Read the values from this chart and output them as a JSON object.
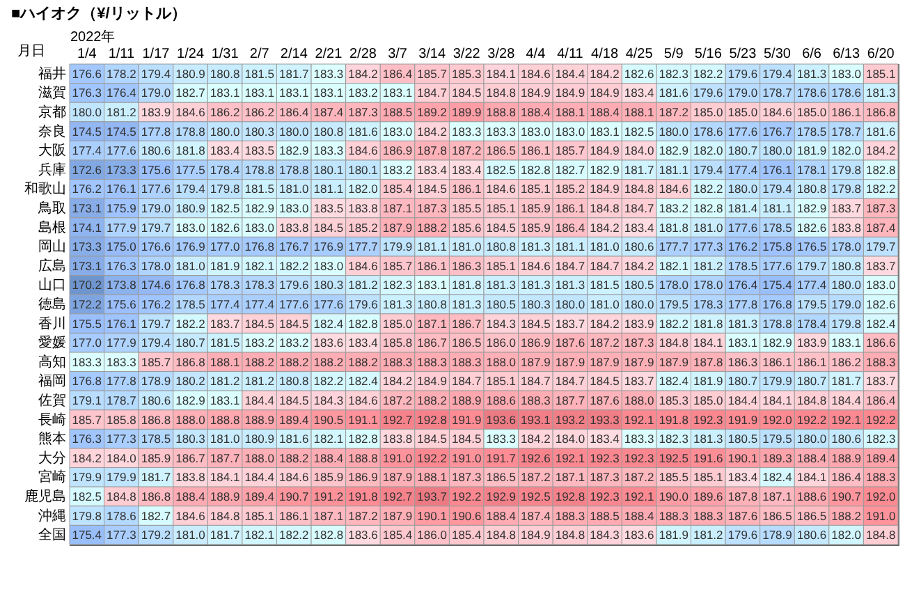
{
  "chart_data": {
    "type": "heatmap",
    "title": "■ハイオク（¥/リットル）",
    "xlabel": "2022年",
    "ylabel": "月日",
    "data_labels": true,
    "cell_labels": [
      [
        "176.6",
        "178.2",
        "179.4",
        "180.9",
        "180.8",
        "181.5",
        "181.7",
        "183.3",
        "184.2",
        "186.4",
        "185.7",
        "185.3",
        "184.1",
        "184.6",
        "184.4",
        "184.2",
        "182.6",
        "182.3",
        "182.2",
        "179.6",
        "179.4",
        "181.3",
        "183.0",
        "185.1"
      ],
      [
        "176.3",
        "176.4",
        "179.0",
        "182.7",
        "183.1",
        "183.1",
        "183.1",
        "183.1",
        "183.2",
        "183.1",
        "184.7",
        "184.5",
        "184.8",
        "184.9",
        "184.9",
        "184.9",
        "183.4",
        "181.6",
        "179.6",
        "179.0",
        "178.7",
        "178.6",
        "178.6",
        "181.3"
      ],
      [
        "180.0",
        "181.2",
        "183.9",
        "184.6",
        "186.2",
        "186.2",
        "186.4",
        "187.4",
        "187.3",
        "188.5",
        "189.2",
        "189.9",
        "188.8",
        "188.4",
        "188.1",
        "188.4",
        "188.1",
        "187.2",
        "185.0",
        "185.0",
        "184.6",
        "185.0",
        "186.1",
        "186.8"
      ],
      [
        "174.5",
        "174.5",
        "177.8",
        "178.8",
        "180.0",
        "180.3",
        "180.0",
        "180.8",
        "181.6",
        "183.0",
        "184.2",
        "183.3",
        "183.3",
        "183.0",
        "183.0",
        "183.1",
        "182.5",
        "180.0",
        "178.6",
        "177.6",
        "176.7",
        "178.5",
        "178.7",
        "181.6"
      ],
      [
        "177.4",
        "177.6",
        "180.6",
        "181.8",
        "183.4",
        "183.5",
        "182.9",
        "183.3",
        "184.6",
        "186.9",
        "187.8",
        "187.2",
        "186.5",
        "186.1",
        "185.7",
        "184.9",
        "184.0",
        "182.9",
        "182.0",
        "180.7",
        "180.0",
        "181.9",
        "182.0",
        "184.2"
      ],
      [
        "172.6",
        "173.3",
        "175.6",
        "177.5",
        "178.4",
        "178.8",
        "178.8",
        "180.1",
        "180.1",
        "183.2",
        "183.4",
        "183.4",
        "182.5",
        "182.8",
        "182.7",
        "182.9",
        "181.7",
        "181.1",
        "179.4",
        "177.4",
        "176.1",
        "178.1",
        "179.8",
        "182.8"
      ],
      [
        "176.2",
        "176.1",
        "177.6",
        "179.4",
        "179.8",
        "181.5",
        "181.0",
        "181.1",
        "182.0",
        "185.4",
        "184.5",
        "186.1",
        "184.6",
        "185.1",
        "185.2",
        "184.9",
        "184.8",
        "184.6",
        "182.2",
        "180.0",
        "179.4",
        "180.8",
        "179.8",
        "182.2"
      ],
      [
        "173.1",
        "175.9",
        "179.0",
        "180.9",
        "182.5",
        "182.9",
        "183.0",
        "183.5",
        "183.8",
        "187.1",
        "187.3",
        "185.5",
        "185.1",
        "185.9",
        "186.1",
        "184.8",
        "184.7",
        "183.2",
        "182.8",
        "181.4",
        "181.1",
        "182.9",
        "183.7",
        "187.3"
      ],
      [
        "174.1",
        "177.9",
        "179.7",
        "183.0",
        "182.6",
        "183.0",
        "183.8",
        "184.5",
        "185.2",
        "187.9",
        "188.2",
        "185.6",
        "184.5",
        "185.9",
        "186.4",
        "184.2",
        "183.4",
        "181.8",
        "181.0",
        "177.6",
        "178.5",
        "182.6",
        "183.8",
        "187.4"
      ],
      [
        "173.3",
        "175.0",
        "176.6",
        "176.9",
        "177.0",
        "176.8",
        "176.7",
        "176.9",
        "177.7",
        "179.9",
        "181.1",
        "181.0",
        "180.8",
        "181.3",
        "181.1",
        "181.0",
        "180.6",
        "177.7",
        "177.3",
        "176.2",
        "175.8",
        "176.5",
        "178.0",
        "179.7"
      ],
      [
        "173.1",
        "176.3",
        "178.0",
        "181.0",
        "181.9",
        "182.1",
        "182.2",
        "183.0",
        "184.6",
        "185.7",
        "186.1",
        "186.3",
        "185.1",
        "184.6",
        "184.7",
        "184.7",
        "184.2",
        "182.1",
        "181.2",
        "178.5",
        "177.6",
        "179.7",
        "180.8",
        "183.7"
      ],
      [
        "170.2",
        "173.8",
        "174.6",
        "176.8",
        "178.3",
        "178.3",
        "179.6",
        "180.3",
        "181.2",
        "182.3",
        "183.1",
        "181.8",
        "181.3",
        "181.3",
        "181.3",
        "181.5",
        "180.5",
        "178.0",
        "178.0",
        "176.4",
        "175.4",
        "177.4",
        "180.0",
        "183.0"
      ],
      [
        "172.2",
        "175.6",
        "176.2",
        "178.5",
        "177.4",
        "177.4",
        "177.6",
        "177.6",
        "179.6",
        "181.3",
        "180.8",
        "181.3",
        "180.5",
        "180.3",
        "180.0",
        "181.0",
        "180.0",
        "179.5",
        "178.3",
        "177.8",
        "176.8",
        "179.5",
        "179.0",
        "182.6"
      ],
      [
        "175.5",
        "176.1",
        "179.7",
        "182.2",
        "183.7",
        "184.5",
        "184.5",
        "182.4",
        "182.8",
        "185.0",
        "187.1",
        "186.7",
        "184.3",
        "184.5",
        "183.7",
        "184.2",
        "183.9",
        "182.2",
        "181.8",
        "181.3",
        "178.8",
        "178.4",
        "179.8",
        "182.4"
      ],
      [
        "177.0",
        "177.9",
        "179.4",
        "180.7",
        "181.5",
        "183.2",
        "183.2",
        "183.6",
        "183.4",
        "185.8",
        "186.7",
        "186.5",
        "186.0",
        "186.9",
        "187.6",
        "187.2",
        "187.3",
        "184.8",
        "184.1",
        "183.1",
        "182.9",
        "183.9",
        "183.1",
        "186.6"
      ],
      [
        "183.3",
        "183.3",
        "185.7",
        "186.8",
        "188.1",
        "188.2",
        "188.2",
        "188.2",
        "188.2",
        "188.3",
        "188.3",
        "188.3",
        "188.0",
        "187.9",
        "187.9",
        "187.9",
        "187.9",
        "187.9",
        "187.8",
        "186.3",
        "186.1",
        "186.1",
        "186.2",
        "188.3"
      ],
      [
        "176.8",
        "177.8",
        "178.9",
        "180.2",
        "181.2",
        "181.2",
        "180.8",
        "182.2",
        "182.4",
        "184.2",
        "184.9",
        "184.7",
        "185.1",
        "184.7",
        "184.7",
        "184.5",
        "183.7",
        "182.4",
        "181.9",
        "180.7",
        "179.9",
        "180.7",
        "181.7",
        "183.7"
      ],
      [
        "179.1",
        "178.7",
        "180.6",
        "182.9",
        "183.1",
        "184.4",
        "184.5",
        "184.3",
        "184.6",
        "187.2",
        "188.2",
        "188.9",
        "188.6",
        "188.3",
        "187.7",
        "187.6",
        "188.0",
        "185.3",
        "185.0",
        "184.4",
        "184.1",
        "184.8",
        "184.4",
        "186.4"
      ],
      [
        "185.7",
        "185.8",
        "186.8",
        "188.0",
        "188.8",
        "188.9",
        "189.4",
        "190.5",
        "191.1",
        "192.7",
        "192.8",
        "191.9",
        "193.6",
        "193.1",
        "193.2",
        "193.3",
        "192.1",
        "191.8",
        "192.3",
        "191.9",
        "192.0",
        "192.2",
        "192.1",
        "192.2"
      ],
      [
        "176.3",
        "177.3",
        "178.5",
        "180.3",
        "181.0",
        "180.9",
        "181.6",
        "182.1",
        "182.8",
        "183.8",
        "184.5",
        "184.5",
        "183.3",
        "184.2",
        "184.0",
        "183.4",
        "183.3",
        "182.3",
        "181.3",
        "180.5",
        "179.5",
        "180.0",
        "180.6",
        "182.3"
      ],
      [
        "184.2",
        "184.0",
        "185.9",
        "186.7",
        "187.7",
        "188.0",
        "188.2",
        "188.4",
        "188.8",
        "191.0",
        "192.2",
        "191.0",
        "191.7",
        "192.6",
        "192.1",
        "192.3",
        "192.3",
        "192.5",
        "191.6",
        "190.1",
        "189.3",
        "188.4",
        "188.9",
        "189.4"
      ],
      [
        "179.9",
        "179.9",
        "181.7",
        "183.8",
        "184.1",
        "184.4",
        "184.6",
        "185.9",
        "186.9",
        "187.9",
        "188.1",
        "187.3",
        "186.5",
        "187.2",
        "187.1",
        "187.3",
        "187.2",
        "185.5",
        "185.1",
        "183.4",
        "182.4",
        "184.1",
        "186.4",
        "188.3"
      ],
      [
        "182.5",
        "184.8",
        "186.8",
        "188.4",
        "188.9",
        "189.4",
        "190.7",
        "191.2",
        "191.8",
        "192.7",
        "193.7",
        "192.2",
        "192.9",
        "192.5",
        "192.8",
        "192.3",
        "192.1",
        "190.0",
        "189.6",
        "187.8",
        "187.1",
        "188.6",
        "190.7",
        "192.0"
      ],
      [
        "179.8",
        "178.6",
        "182.7",
        "184.6",
        "184.8",
        "185.1",
        "186.1",
        "187.1",
        "187.2",
        "187.9",
        "190.1",
        "190.6",
        "188.4",
        "187.4",
        "188.3",
        "188.5",
        "188.4",
        "188.3",
        "188.3",
        "187.6",
        "186.5",
        "186.5",
        "188.2",
        "191.0"
      ],
      [
        "175.4",
        "177.3",
        "179.2",
        "181.0",
        "181.7",
        "182.1",
        "182.2",
        "182.8",
        "183.6",
        "185.4",
        "186.0",
        "185.4",
        "184.8",
        "184.9",
        "184.8",
        "184.3",
        "183.6",
        "181.9",
        "181.2",
        "179.6",
        "178.9",
        "180.6",
        "182.0",
        "184.8"
      ]
    ],
    "categories": [
      "1/4",
      "1/11",
      "1/17",
      "1/24",
      "1/31",
      "2/7",
      "2/14",
      "2/21",
      "2/28",
      "3/7",
      "3/14",
      "3/22",
      "3/28",
      "4/4",
      "4/11",
      "4/18",
      "4/25",
      "5/9",
      "5/16",
      "5/23",
      "5/30",
      "6/6",
      "6/13",
      "6/20"
    ],
    "y_categories": [
      "福井",
      "滋賀",
      "京都",
      "奈良",
      "大阪",
      "兵庫",
      "和歌山",
      "鳥取",
      "島根",
      "岡山",
      "広島",
      "山口",
      "徳島",
      "香川",
      "愛媛",
      "高知",
      "福岡",
      "佐賀",
      "長崎",
      "熊本",
      "大分",
      "宮崎",
      "鹿児島",
      "沖縄",
      "全国"
    ],
    "cells": [
      [
        176.6,
        178.2,
        179.4,
        180.9,
        180.8,
        181.5,
        181.7,
        183.3,
        184.2,
        186.4,
        185.7,
        185.3,
        184.1,
        184.6,
        184.4,
        184.2,
        182.6,
        182.3,
        182.2,
        179.6,
        179.4,
        181.3,
        183.0,
        185.1
      ],
      [
        176.3,
        176.4,
        179.0,
        182.7,
        183.1,
        183.1,
        183.1,
        183.1,
        183.2,
        183.1,
        184.7,
        184.5,
        184.8,
        184.9,
        184.9,
        184.9,
        183.4,
        181.6,
        179.6,
        179.0,
        178.7,
        178.6,
        178.6,
        181.3
      ],
      [
        180.0,
        181.2,
        183.9,
        184.6,
        186.2,
        186.2,
        186.4,
        187.4,
        187.3,
        188.5,
        189.2,
        189.9,
        188.8,
        188.4,
        188.1,
        188.4,
        188.1,
        187.2,
        185.0,
        185.0,
        184.6,
        185.0,
        186.1,
        186.8
      ],
      [
        174.5,
        174.5,
        177.8,
        178.8,
        180.0,
        180.3,
        180.0,
        180.8,
        181.6,
        183.0,
        184.2,
        183.3,
        183.3,
        183.0,
        183.0,
        183.1,
        182.5,
        180.0,
        178.6,
        177.6,
        176.7,
        178.5,
        178.7,
        181.6
      ],
      [
        177.4,
        177.6,
        180.6,
        181.8,
        183.4,
        183.5,
        182.9,
        183.3,
        184.6,
        186.9,
        187.8,
        187.2,
        186.5,
        186.1,
        185.7,
        184.9,
        184.0,
        182.9,
        182.0,
        180.7,
        180.0,
        181.9,
        182.0,
        184.2
      ],
      [
        172.6,
        173.3,
        175.6,
        177.5,
        178.4,
        178.8,
        178.8,
        180.1,
        180.1,
        183.2,
        183.4,
        183.4,
        182.5,
        182.8,
        182.7,
        182.9,
        181.7,
        181.1,
        179.4,
        177.4,
        176.1,
        178.1,
        179.8,
        182.8
      ],
      [
        176.2,
        176.1,
        177.6,
        179.4,
        179.8,
        181.5,
        181.0,
        181.1,
        182.0,
        185.4,
        184.5,
        186.1,
        184.6,
        185.1,
        185.2,
        184.9,
        184.8,
        184.6,
        182.2,
        180.0,
        179.4,
        180.8,
        179.8,
        182.2
      ],
      [
        173.1,
        175.9,
        179.0,
        180.9,
        182.5,
        182.9,
        183.0,
        183.5,
        183.8,
        187.1,
        187.3,
        185.5,
        185.1,
        185.9,
        186.1,
        184.8,
        184.7,
        183.2,
        182.8,
        181.4,
        181.1,
        182.9,
        183.7,
        187.3
      ],
      [
        174.1,
        177.9,
        179.7,
        183.0,
        182.6,
        183.0,
        183.8,
        184.5,
        185.2,
        187.9,
        188.2,
        185.6,
        184.5,
        185.9,
        186.4,
        184.2,
        183.4,
        181.8,
        181.0,
        177.6,
        178.5,
        182.6,
        183.8,
        187.4
      ],
      [
        173.3,
        175.0,
        176.6,
        176.9,
        177.0,
        176.8,
        176.7,
        176.9,
        177.7,
        179.9,
        181.1,
        181.0,
        180.8,
        181.3,
        181.1,
        181.0,
        180.6,
        177.7,
        177.3,
        176.2,
        175.8,
        176.5,
        178.0,
        179.7
      ],
      [
        173.1,
        176.3,
        178.0,
        181.0,
        181.9,
        182.1,
        182.2,
        183.0,
        184.6,
        185.7,
        186.1,
        186.3,
        185.1,
        184.6,
        184.7,
        184.7,
        184.2,
        182.1,
        181.2,
        178.5,
        177.6,
        179.7,
        180.8,
        183.7
      ],
      [
        170.2,
        173.8,
        174.6,
        176.8,
        178.3,
        178.3,
        179.6,
        180.3,
        181.2,
        182.3,
        183.1,
        181.8,
        181.3,
        181.3,
        181.3,
        181.5,
        180.5,
        178.0,
        178.0,
        176.4,
        175.4,
        177.4,
        180.0,
        183.0
      ],
      [
        172.2,
        175.6,
        176.2,
        178.5,
        177.4,
        177.4,
        177.6,
        177.6,
        179.6,
        181.3,
        180.8,
        181.3,
        180.5,
        180.3,
        180.0,
        181.0,
        180.0,
        179.5,
        178.3,
        177.8,
        176.8,
        179.5,
        179.0,
        182.6
      ],
      [
        175.5,
        176.1,
        179.7,
        182.2,
        183.7,
        184.5,
        184.5,
        182.4,
        182.8,
        185.0,
        187.1,
        186.7,
        184.3,
        184.5,
        183.7,
        184.2,
        183.9,
        182.2,
        181.8,
        181.3,
        178.8,
        178.4,
        179.8,
        182.4
      ],
      [
        177.0,
        177.9,
        179.4,
        180.7,
        181.5,
        183.2,
        183.2,
        183.6,
        183.4,
        185.8,
        186.7,
        186.5,
        186.0,
        186.9,
        187.6,
        187.2,
        187.3,
        184.8,
        184.1,
        183.1,
        182.9,
        183.9,
        183.1,
        186.6
      ],
      [
        183.3,
        183.3,
        185.7,
        186.8,
        188.1,
        188.2,
        188.2,
        188.2,
        188.2,
        188.3,
        188.3,
        188.3,
        188.0,
        187.9,
        187.9,
        187.9,
        187.9,
        187.9,
        187.8,
        186.3,
        186.1,
        186.1,
        186.2,
        188.3
      ],
      [
        176.8,
        177.8,
        178.9,
        180.2,
        181.2,
        181.2,
        180.8,
        182.2,
        182.4,
        184.2,
        184.9,
        184.7,
        185.1,
        184.7,
        184.7,
        184.5,
        183.7,
        182.4,
        181.9,
        180.7,
        179.9,
        180.7,
        181.7,
        183.7
      ],
      [
        179.1,
        178.7,
        180.6,
        182.9,
        183.1,
        184.4,
        184.5,
        184.3,
        184.6,
        187.2,
        188.2,
        188.9,
        188.6,
        188.3,
        187.7,
        187.6,
        188.0,
        185.3,
        185.0,
        184.4,
        184.1,
        184.8,
        184.4,
        186.4
      ],
      [
        185.7,
        185.8,
        186.8,
        188.0,
        188.8,
        188.9,
        189.4,
        190.5,
        191.1,
        192.7,
        192.8,
        191.9,
        193.6,
        193.1,
        193.2,
        193.3,
        192.1,
        191.8,
        192.3,
        191.9,
        192.0,
        192.2,
        192.1,
        192.2
      ],
      [
        176.3,
        177.3,
        178.5,
        180.3,
        181.0,
        180.9,
        181.6,
        182.1,
        182.8,
        183.8,
        184.5,
        184.5,
        183.3,
        184.2,
        184.0,
        183.4,
        183.3,
        182.3,
        181.3,
        180.5,
        179.5,
        180.0,
        180.6,
        182.3
      ],
      [
        184.2,
        184.0,
        185.9,
        186.7,
        187.7,
        188.0,
        188.2,
        188.4,
        188.8,
        191.0,
        192.2,
        191.0,
        191.7,
        192.6,
        192.1,
        192.3,
        192.3,
        192.5,
        191.6,
        190.1,
        189.3,
        188.4,
        188.9,
        189.4
      ],
      [
        179.9,
        179.9,
        181.7,
        183.8,
        184.1,
        184.4,
        184.6,
        185.9,
        186.9,
        187.9,
        188.1,
        187.3,
        186.5,
        187.2,
        187.1,
        187.3,
        187.2,
        185.5,
        185.1,
        183.4,
        182.4,
        184.1,
        186.4,
        188.3
      ],
      [
        182.5,
        184.8,
        186.8,
        188.4,
        188.9,
        189.4,
        190.7,
        191.2,
        191.8,
        192.7,
        193.7,
        192.2,
        192.9,
        192.5,
        192.8,
        192.3,
        192.1,
        190.0,
        189.6,
        187.8,
        187.1,
        188.6,
        190.7,
        192.0
      ],
      [
        179.8,
        178.6,
        182.7,
        184.6,
        184.8,
        185.1,
        186.1,
        187.1,
        187.2,
        187.9,
        190.1,
        190.6,
        188.4,
        187.4,
        188.3,
        188.5,
        188.4,
        188.3,
        188.3,
        187.6,
        186.5,
        186.5,
        188.2,
        191.0
      ],
      [
        175.4,
        177.3,
        179.2,
        181.0,
        181.7,
        182.1,
        182.2,
        182.8,
        183.6,
        185.4,
        186.0,
        185.4,
        184.8,
        184.9,
        184.8,
        184.3,
        183.6,
        181.9,
        181.2,
        179.6,
        178.9,
        180.6,
        182.0,
        184.8
      ]
    ]
  }
}
